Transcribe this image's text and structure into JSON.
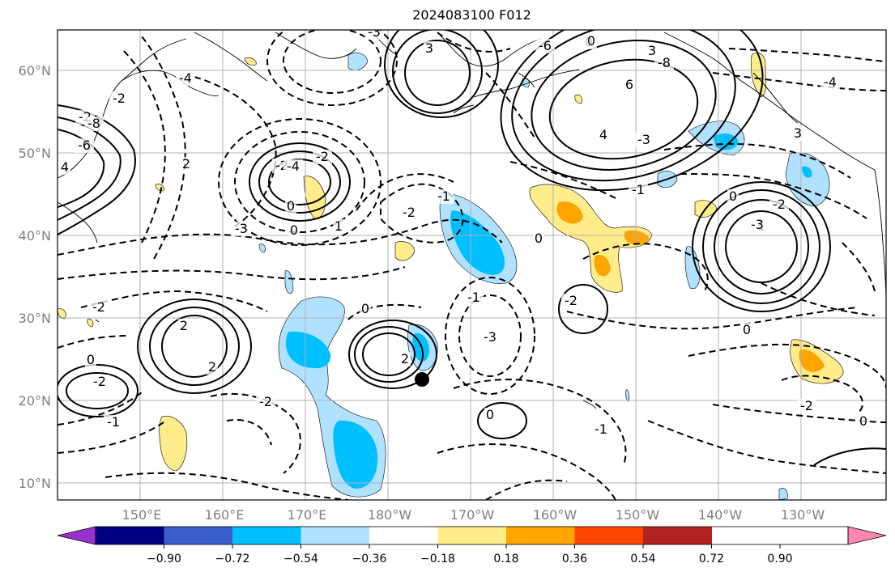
{
  "title": "2024083100 F012",
  "map": {
    "lat_labels": [
      "60°N",
      "50°N",
      "40°N",
      "30°N",
      "20°N",
      "10°N"
    ],
    "lon_labels": [
      "150°E",
      "160°E",
      "170°E",
      "180°W",
      "170°W",
      "160°W",
      "150°W",
      "140°W",
      "130°W"
    ],
    "contour_labels": [
      "-2",
      "-4",
      "3",
      "3",
      "-3",
      "0",
      "-6",
      "-8",
      "6",
      "4",
      "-3",
      "-2",
      "-8",
      "-6",
      "4",
      "2",
      "0",
      "-2",
      "-4",
      "-2",
      "0",
      "1",
      "-1",
      "-3",
      "-2",
      "-1",
      "0",
      "0",
      "1",
      "-2",
      "-3",
      "2",
      "2",
      "-2",
      "0",
      "-1",
      "2",
      "0",
      "-4",
      "-2",
      "-1",
      "3",
      "0",
      "-3",
      "-2",
      "0",
      "-2",
      "0",
      "-1",
      "-2",
      "0"
    ]
  },
  "colorbar": {
    "tick_labels": [
      "−0.90",
      "−0.72",
      "−0.54",
      "−0.36",
      "−0.18",
      "0.18",
      "0.36",
      "0.54",
      "0.72",
      "0.90"
    ],
    "colors": [
      "#9932cc",
      "#000080",
      "#3a5fcd",
      "#00bfff",
      "#b0e2ff",
      "#ffffff",
      "#ffec8b",
      "#ffa500",
      "#ff4500",
      "#b22222",
      "#ff86b0"
    ]
  },
  "marker_icon": "storm-position-dot"
}
